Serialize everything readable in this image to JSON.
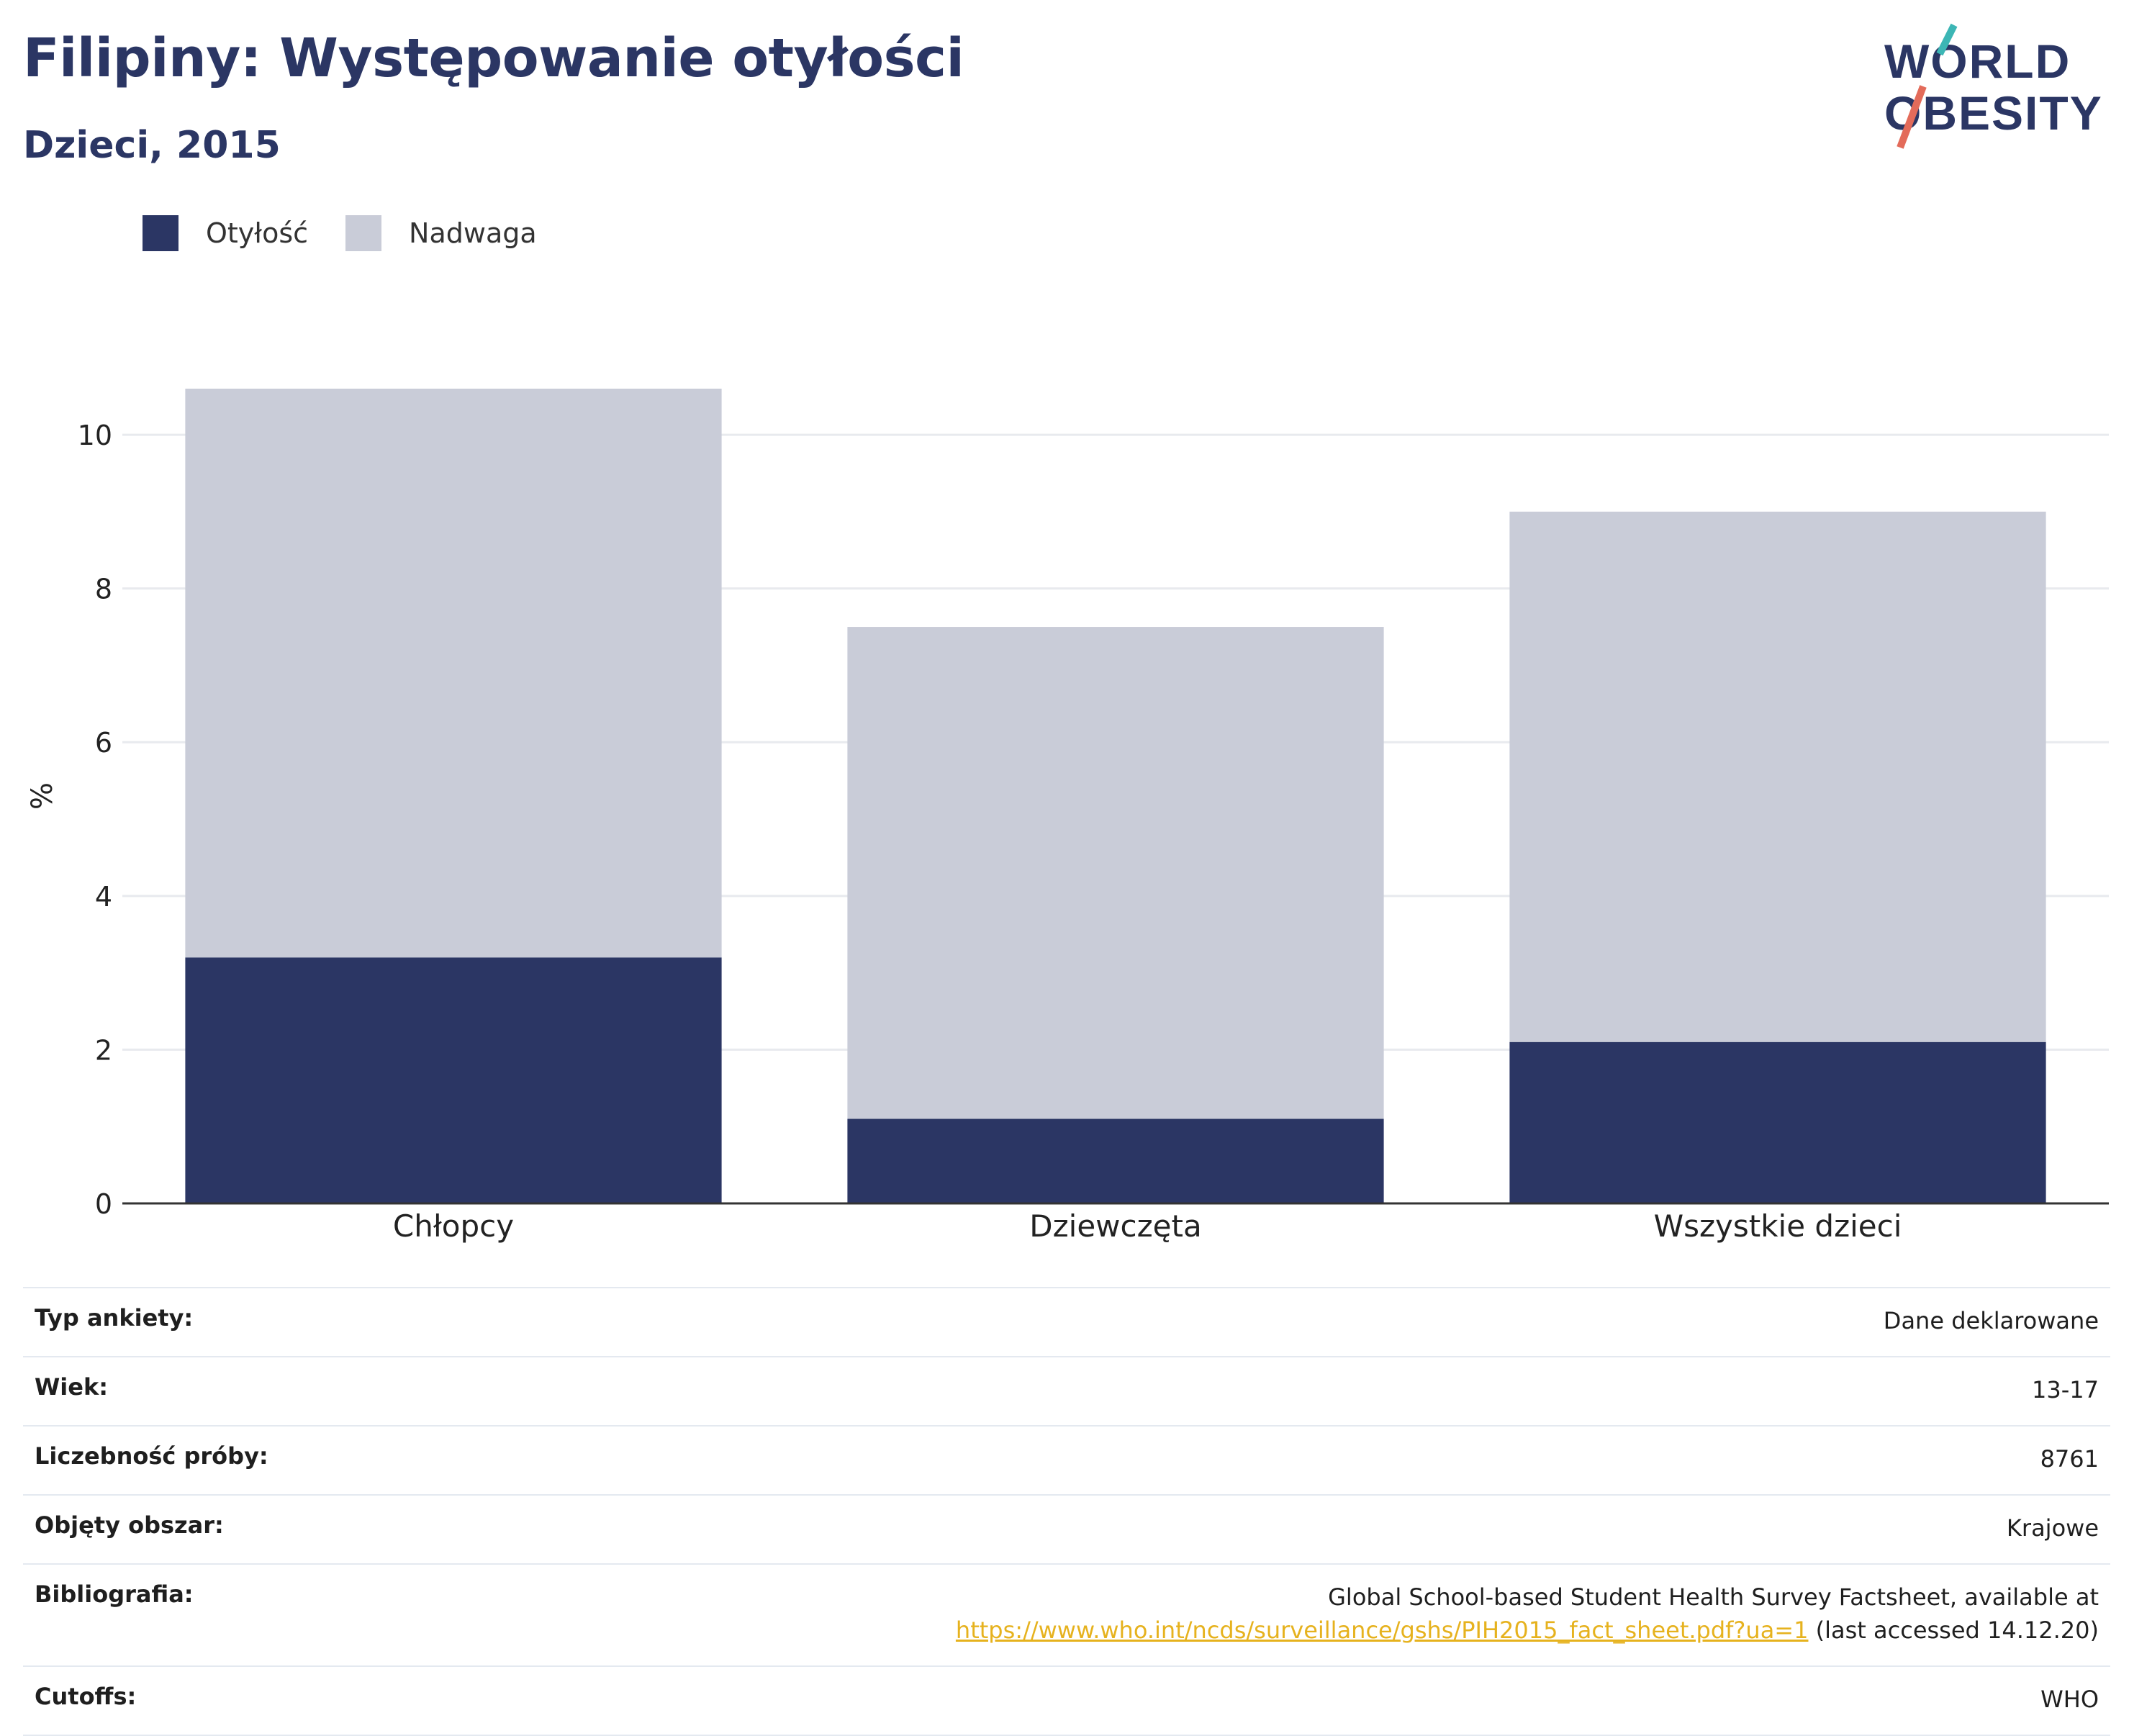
{
  "title": "Filipiny: Występowanie otyłości",
  "subtitle": "Dzieci, 2015",
  "logo": {
    "line1": "WORLD",
    "line2": "OBESITY"
  },
  "colors": {
    "obesity": "#2b3664",
    "overweight": "#c9ccd8",
    "title": "#2b3664",
    "link": "#e6b21e"
  },
  "legend": [
    {
      "label": "Otyłość",
      "color": "#2b3664"
    },
    {
      "label": "Nadwaga",
      "color": "#c9ccd8"
    }
  ],
  "chart_data": {
    "type": "bar",
    "stacked": true,
    "categories": [
      "Chłopcy",
      "Dziewczęta",
      "Wszystkie dzieci"
    ],
    "series": [
      {
        "name": "Otyłość",
        "values": [
          3.2,
          1.1,
          2.1
        ]
      },
      {
        "name": "Nadwaga",
        "values": [
          7.4,
          6.4,
          6.9
        ]
      }
    ],
    "ylabel": "%",
    "ylim": [
      0,
      10.6
    ],
    "yticks": [
      0,
      2,
      4,
      6,
      8,
      10
    ],
    "grid": true,
    "legend_position": "top-left"
  },
  "info": [
    {
      "label": "Typ ankiety:",
      "value": "Dane deklarowane"
    },
    {
      "label": "Wiek:",
      "value": "13-17"
    },
    {
      "label": "Liczebność próby:",
      "value": "8761"
    },
    {
      "label": "Objęty obszar:",
      "value": "Krajowe"
    },
    {
      "label": "Bibliografia:",
      "value": "Global School-based Student Health Survey Factsheet, available at",
      "link": "https://www.who.int/ncds/surveillance/gshs/PIH2015_fact_sheet.pdf?ua=1",
      "suffix": "(last accessed 14.12.20)"
    },
    {
      "label": "Cutoffs:",
      "value": "WHO"
    }
  ]
}
